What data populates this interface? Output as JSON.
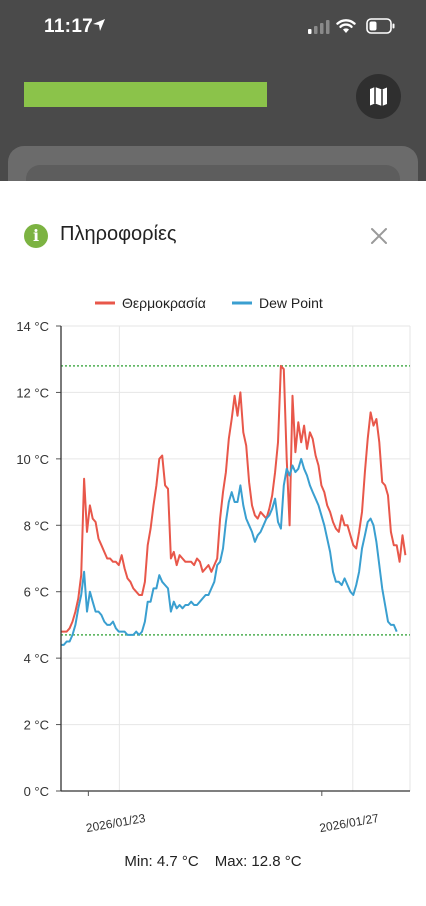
{
  "status_bar": {
    "time": "11:17"
  },
  "header": {
    "accent_color": "#8bc34a",
    "map_button_icon": "map-icon"
  },
  "panel": {
    "title": "Πληροφορίες",
    "info_icon_glyph": "i",
    "close_icon": "close-icon"
  },
  "chart_data": {
    "type": "line",
    "legend": [
      "Θερμοκρασία",
      "Dew Point"
    ],
    "legend_position": "top-center",
    "ylim": [
      0,
      14
    ],
    "y_ticks": [
      0,
      2,
      4,
      6,
      8,
      10,
      12,
      14
    ],
    "y_tick_labels": [
      "0 °C",
      "2 °C",
      "4 °C",
      "6 °C",
      "8 °C",
      "10 °C",
      "12 °C",
      "14 °C"
    ],
    "x_range_days": [
      "2026/01/22",
      "2026/01/27"
    ],
    "x_tick_labels": [
      "2026/01/23",
      "2026/01/27"
    ],
    "grid": true,
    "reference_lines": [
      {
        "label": "max",
        "value": 12.8,
        "color": "#4caf50"
      },
      {
        "label": "min",
        "value": 4.7,
        "color": "#4caf50"
      }
    ],
    "series": [
      {
        "name": "Θερμοκρασία",
        "color": "#e8574a",
        "values": [
          5.3,
          5.3,
          5.2,
          4.9,
          4.8,
          4.8,
          4.8,
          4.9,
          5.1,
          5.4,
          5.8,
          6.5,
          9.4,
          7.8,
          8.6,
          8.2,
          8.1,
          7.6,
          7.4,
          7.2,
          7.0,
          7.0,
          6.9,
          6.9,
          6.8,
          7.1,
          6.7,
          6.4,
          6.3,
          6.1,
          6.0,
          5.9,
          5.9,
          6.3,
          7.4,
          7.9,
          8.6,
          9.2,
          10.0,
          10.1,
          9.2,
          9.1,
          7.0,
          7.2,
          6.8,
          7.1,
          7.0,
          6.9,
          6.9,
          6.9,
          6.8,
          7.0,
          6.9,
          6.6,
          6.7,
          6.8,
          6.6,
          6.8,
          7.0,
          8.2,
          9.0,
          9.6,
          10.6,
          11.2,
          11.9,
          11.3,
          12.0,
          10.8,
          10.4,
          9.3,
          8.6,
          8.3,
          8.2,
          8.4,
          8.3,
          8.2,
          8.5,
          8.9,
          9.6,
          10.5,
          12.8,
          12.7,
          10.0,
          8.0,
          11.9,
          10.2,
          11.1,
          10.5,
          11.0,
          10.3,
          10.8,
          10.6,
          10.1,
          9.8,
          9.2,
          9.0,
          8.6,
          8.4,
          8.1,
          7.9,
          7.8,
          8.3,
          8.0,
          8.0,
          7.7,
          7.4,
          7.3,
          7.8,
          8.4,
          9.6,
          10.6,
          11.4,
          11.0,
          11.2,
          10.5,
          9.3,
          9.2,
          8.9,
          7.8,
          7.4,
          7.4,
          6.9,
          7.7,
          7.1
        ],
        "x_start_day": -0.2,
        "x_step_day": 0.0496
      },
      {
        "name": "Dew Point",
        "color": "#3a9fd0",
        "values": [
          4.8,
          4.8,
          4.7,
          4.5,
          4.4,
          4.4,
          4.5,
          4.5,
          4.7,
          5.0,
          5.5,
          5.9,
          6.6,
          5.4,
          6.0,
          5.7,
          5.4,
          5.4,
          5.3,
          5.1,
          5.0,
          5.0,
          5.1,
          4.9,
          4.8,
          4.8,
          4.8,
          4.7,
          4.7,
          4.7,
          4.8,
          4.7,
          4.8,
          5.1,
          5.7,
          5.7,
          6.1,
          6.1,
          6.5,
          6.3,
          6.2,
          6.1,
          5.4,
          5.7,
          5.5,
          5.6,
          5.5,
          5.6,
          5.6,
          5.7,
          5.6,
          5.6,
          5.7,
          5.8,
          5.9,
          5.9,
          6.1,
          6.3,
          6.8,
          6.9,
          7.3,
          8.1,
          8.7,
          9.0,
          8.7,
          8.7,
          9.2,
          8.6,
          8.2,
          8.0,
          7.8,
          7.5,
          7.7,
          7.8,
          8.0,
          8.2,
          8.3,
          8.5,
          8.8,
          8.1,
          7.9,
          9.2,
          9.7,
          9.5,
          9.8,
          9.6,
          9.7,
          10.0,
          9.7,
          9.5,
          9.2,
          9.0,
          8.8,
          8.6,
          8.3,
          8.0,
          7.6,
          7.2,
          6.6,
          6.3,
          6.3,
          6.2,
          6.4,
          6.2,
          6.0,
          5.9,
          6.2,
          6.6,
          7.3,
          7.7,
          8.1,
          8.2,
          8.0,
          7.5,
          6.8,
          6.1,
          5.6,
          5.1,
          5.0,
          5.0,
          4.8
        ],
        "x_start_day": -0.2,
        "x_step_day": 0.0496
      }
    ]
  },
  "summary": {
    "min_label": "Min: 4.7 °C",
    "max_label": "Max: 12.8 °C"
  }
}
